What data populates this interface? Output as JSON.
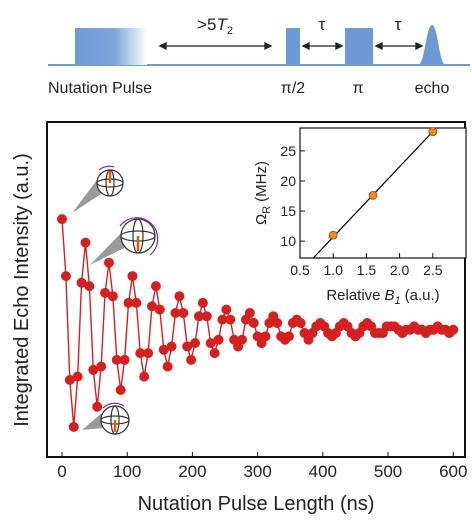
{
  "pulse_sequence": {
    "nutation": "Nutation Pulse",
    "delay": [
      ">5",
      "T",
      "2"
    ],
    "tau": [
      "τ",
      "τ"
    ],
    "pulses": [
      "π/2",
      "π",
      "echo"
    ]
  },
  "chart_data": [
    {
      "type": "line",
      "xlabel": "Nutation Pulse Length (ns)",
      "ylabel": "Integrated Echo Intensity (a.u.)",
      "xlim": [
        -23,
        618
      ],
      "xticks": [
        0,
        100,
        200,
        300,
        400,
        500,
        600
      ],
      "ylim": [
        0,
        1
      ],
      "x": [
        0,
        6,
        12,
        18,
        24,
        30,
        36,
        42,
        48,
        54,
        60,
        66,
        72,
        78,
        84,
        90,
        96,
        102,
        108,
        114,
        120,
        126,
        132,
        138,
        144,
        150,
        156,
        162,
        168,
        174,
        180,
        186,
        192,
        198,
        204,
        210,
        216,
        222,
        228,
        234,
        240,
        246,
        252,
        258,
        264,
        270,
        276,
        282,
        288,
        294,
        300,
        306,
        312,
        318,
        324,
        330,
        336,
        342,
        348,
        354,
        360,
        366,
        372,
        378,
        384,
        390,
        396,
        402,
        408,
        414,
        420,
        426,
        432,
        438,
        444,
        450,
        456,
        462,
        468,
        474,
        480,
        486,
        492,
        498,
        504,
        510,
        516,
        522,
        528,
        534,
        540,
        546,
        552,
        558,
        564,
        570,
        576,
        582,
        588,
        594,
        600
      ],
      "series": [
        {
          "color": "#d42020",
          "line": true,
          "markers": true,
          "values": [
            0.71,
            0.54,
            0.23,
            0.09,
            0.24,
            0.52,
            0.64,
            0.51,
            0.26,
            0.15,
            0.27,
            0.49,
            0.58,
            0.48,
            0.29,
            0.2,
            0.29,
            0.46,
            0.54,
            0.46,
            0.31,
            0.24,
            0.31,
            0.45,
            0.51,
            0.44,
            0.32,
            0.27,
            0.33,
            0.43,
            0.48,
            0.43,
            0.33,
            0.29,
            0.34,
            0.42,
            0.46,
            0.42,
            0.34,
            0.31,
            0.35,
            0.41,
            0.44,
            0.41,
            0.35,
            0.33,
            0.35,
            0.41,
            0.43,
            0.4,
            0.36,
            0.34,
            0.36,
            0.4,
            0.42,
            0.4,
            0.36,
            0.35,
            0.36,
            0.4,
            0.41,
            0.4,
            0.37,
            0.35,
            0.37,
            0.39,
            0.4,
            0.39,
            0.37,
            0.36,
            0.37,
            0.39,
            0.4,
            0.39,
            0.37,
            0.36,
            0.37,
            0.39,
            0.4,
            0.39,
            0.37,
            0.37,
            0.37,
            0.39,
            0.39,
            0.39,
            0.38,
            0.37,
            0.38,
            0.38,
            0.39,
            0.38,
            0.38,
            0.37,
            0.38,
            0.38,
            0.39,
            0.38,
            0.38,
            0.37,
            0.38
          ]
        }
      ]
    },
    {
      "type": "scatter",
      "xlabel": [
        "Relative",
        "B",
        "1",
        "(a.u.)"
      ],
      "ylabel": [
        "Ω",
        "R",
        "(MHz)"
      ],
      "xlim": [
        0.5,
        3.0
      ],
      "xticks": [
        0.5,
        {
          "value": 1,
          "label": "1.0"
        },
        1.5,
        {
          "value": 2,
          "label": "2.0"
        },
        2.5
      ],
      "ylim": [
        7.2,
        28.8
      ],
      "yticks": [
        10,
        15,
        20,
        25
      ],
      "series": [
        {
          "color": "#000000",
          "line": true,
          "markers": false,
          "x": [
            0.7,
            2.5
          ],
          "values": [
            7.2,
            28.2
          ]
        },
        {
          "color": "#f08a24",
          "line": false,
          "markers": true,
          "x": [
            1.0,
            1.6,
            2.5
          ],
          "values": [
            11,
            17.6,
            28.2
          ]
        }
      ]
    }
  ]
}
